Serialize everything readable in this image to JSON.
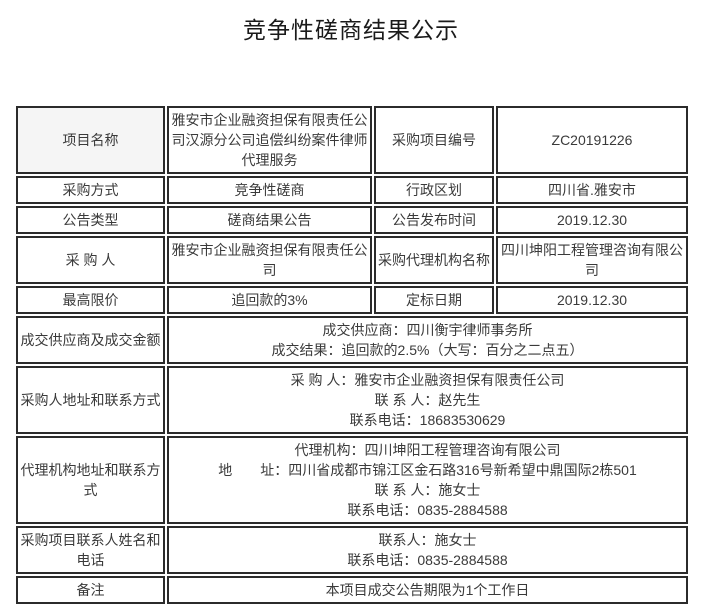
{
  "page": {
    "title": "竞争性磋商结果公示"
  },
  "colors": {
    "border": "#2b2b2b",
    "shaded_label_bg": "#f5f5f5",
    "text": "#3a3a3a",
    "background": "#ffffff"
  },
  "table": {
    "rows": [
      {
        "label1": "项目名称",
        "value1": "雅安市企业融资担保有限责任公司汉源分公司追偿纠纷案件律师代理服务",
        "label2": "采购项目编号",
        "value2": "ZC20191226"
      },
      {
        "label1": "采购方式",
        "value1": "竞争性磋商",
        "label2": "行政区划",
        "value2": "四川省.雅安市"
      },
      {
        "label1": "公告类型",
        "value1": "磋商结果公告",
        "label2": "公告发布时间",
        "value2": "2019.12.30"
      },
      {
        "label1": "采 购 人",
        "value1": "雅安市企业融资担保有限责任公司",
        "label2": "采购代理机构名称",
        "value2": "四川坤阳工程管理咨询有限公司"
      },
      {
        "label1": "最高限价",
        "value1": "追回款的3%",
        "label2": "定标日期",
        "value2": "2019.12.30"
      },
      {
        "label": "成交供应商及成交金额",
        "value": "成交供应商：四川衡宇律师事务所\n成交结果：追回款的2.5%（大写：百分之二点五）"
      },
      {
        "label": "采购人地址和联系方式",
        "value": "采 购 人：雅安市企业融资担保有限责任公司\n联 系 人：赵先生\n联系电话：18683530629"
      },
      {
        "label": "代理机构地址和联系方式",
        "value": "代理机构：四川坤阳工程管理咨询有限公司\n地　　址：四川省成都市锦江区金石路316号新希望中鼎国际2栋501\n联 系 人：施女士\n联系电话：0835-2884588"
      },
      {
        "label": "采购项目联系人姓名和电话",
        "value": "联系人：施女士\n联系电话：0835-2884588"
      },
      {
        "label": "备注",
        "value": "本项目成交公告期限为1个工作日"
      }
    ]
  }
}
